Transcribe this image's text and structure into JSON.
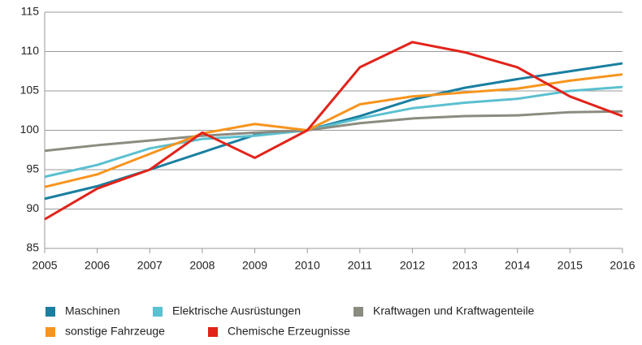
{
  "chart_data": {
    "type": "line",
    "x": [
      2005,
      2006,
      2007,
      2008,
      2009,
      2010,
      2011,
      2012,
      2013,
      2014,
      2015,
      2016
    ],
    "xlim": [
      2005,
      2016
    ],
    "xticks": [
      2005,
      2006,
      2007,
      2008,
      2009,
      2010,
      2011,
      2012,
      2013,
      2014,
      2015,
      2016
    ],
    "ylim": [
      85,
      115
    ],
    "yticks": [
      85,
      90,
      95,
      100,
      105,
      110,
      115
    ],
    "grid": true,
    "legend": "bottom",
    "series": [
      {
        "name": "Maschinen",
        "color": "#1a7fa0",
        "values": [
          91.3,
          92.9,
          95.0,
          97.2,
          99.4,
          100,
          101.8,
          103.9,
          105.4,
          106.5,
          107.5,
          108.5
        ]
      },
      {
        "name": "Elektrische Ausrüstungen",
        "color": "#5bc0d0",
        "values": [
          94.1,
          95.6,
          97.7,
          98.9,
          99.3,
          100,
          101.5,
          102.8,
          103.5,
          104.0,
          105.0,
          105.5
        ]
      },
      {
        "name": "Kraftwagen und Kraftwagenteile",
        "color": "#8c8b80",
        "values": [
          97.4,
          98.1,
          98.7,
          99.3,
          99.7,
          100,
          100.9,
          101.5,
          101.8,
          101.9,
          102.3,
          102.4
        ]
      },
      {
        "name": "sonstige Fahrzeuge",
        "color": "#f7941d",
        "values": [
          92.8,
          94.4,
          97.0,
          99.6,
          100.8,
          100,
          103.3,
          104.3,
          104.8,
          105.3,
          106.3,
          107.1
        ]
      },
      {
        "name": "Chemische Erzeugnisse",
        "color": "#e2231a",
        "values": [
          88.7,
          92.6,
          95.0,
          99.7,
          96.5,
          100,
          108.0,
          111.2,
          109.9,
          108.0,
          104.3,
          101.8
        ]
      }
    ]
  }
}
